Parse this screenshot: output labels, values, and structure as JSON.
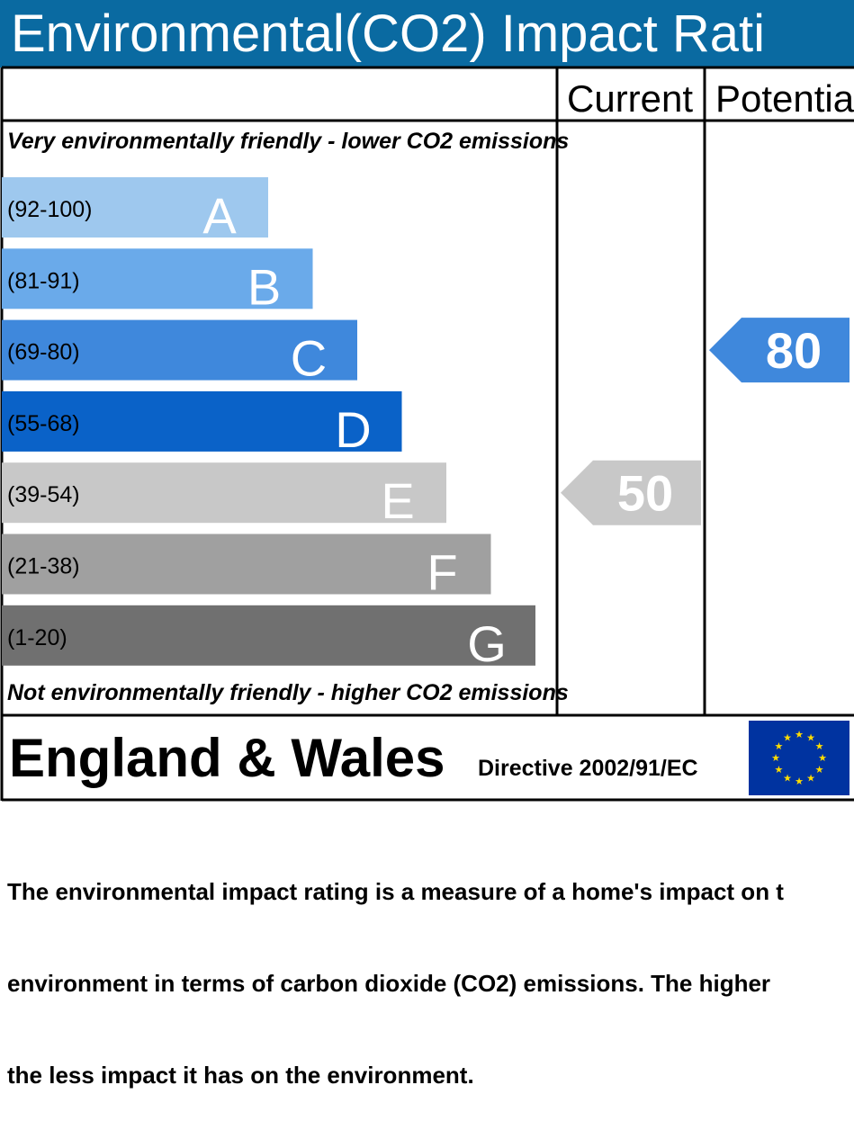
{
  "title": "Environmental(CO2) Impact Rati",
  "columns": {
    "current": "Current",
    "potential": "Potentia"
  },
  "top_note": "Very environmentally friendly - lower CO2 emissions",
  "bottom_note": "Not environmentally friendly - higher CO2 emissions",
  "footer": {
    "region": "England & Wales",
    "directive": "Directive 2002/91/EC",
    "flag_icon": "eu-flag-icon"
  },
  "description": [
    "The environmental impact rating is a measure of a home's impact on t",
    "environment in terms of carbon dioxide (CO2) emissions. The higher",
    "the less impact it has on the environment."
  ],
  "chart_data": {
    "type": "bar",
    "categories": [
      "A",
      "B",
      "C",
      "D",
      "E",
      "F",
      "G"
    ],
    "ranges": [
      "(92-100)",
      "(81-91)",
      "(69-80)",
      "(55-68)",
      "(39-54)",
      "(21-38)",
      "(1-20)"
    ],
    "colors": [
      "#9ec8ee",
      "#6aaaea",
      "#3f88dc",
      "#0a62c8",
      "#c8c8c8",
      "#a0a0a0",
      "#707070"
    ],
    "current": {
      "value": 50,
      "band": "E",
      "color": "#c8c8c8"
    },
    "potential": {
      "value": 80,
      "band": "C",
      "color": "#3f88dc"
    }
  }
}
